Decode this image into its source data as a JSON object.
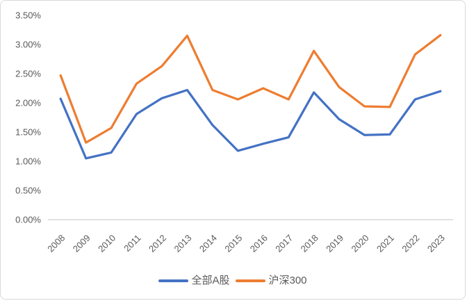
{
  "chart_data": {
    "type": "line",
    "title": "",
    "categories": [
      "2008",
      "2009",
      "2010",
      "2011",
      "2012",
      "2013",
      "2014",
      "2015",
      "2016",
      "2017",
      "2018",
      "2019",
      "2020",
      "2021",
      "2022",
      "2023"
    ],
    "series": [
      {
        "name": "全部A股",
        "color": "#4472C4",
        "values": [
          2.07,
          1.05,
          1.15,
          1.81,
          2.08,
          2.22,
          1.62,
          1.18,
          1.3,
          1.41,
          2.18,
          1.72,
          1.45,
          1.46,
          2.06,
          2.2
        ]
      },
      {
        "name": "沪深300",
        "color": "#ED7D31",
        "values": [
          2.47,
          1.32,
          1.57,
          2.33,
          2.63,
          3.15,
          2.22,
          2.06,
          2.25,
          2.06,
          2.89,
          2.27,
          1.94,
          1.93,
          2.83,
          3.16
        ]
      }
    ],
    "xlabel": "",
    "ylabel": "",
    "ylim": [
      0,
      3.5
    ],
    "ytick_step": 0.5,
    "ytick_labels": [
      "0.00%",
      "0.50%",
      "1.00%",
      "1.50%",
      "2.00%",
      "2.50%",
      "3.00%",
      "3.50%"
    ],
    "values_unit": "percent",
    "grid": false,
    "legend_position": "bottom",
    "axis_text_color": "#595959",
    "axis_line_color": "#D9D9D9"
  }
}
